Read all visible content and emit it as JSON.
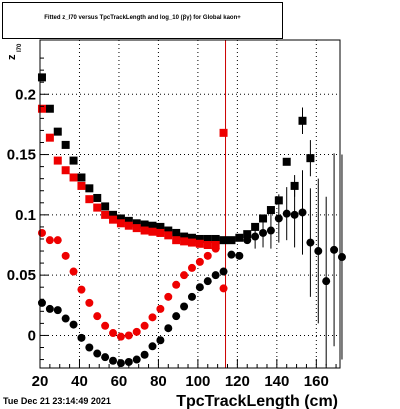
{
  "header": {
    "title": "Fitted  z_I70  versus TpcTrackLength and log_10 (βγ) for Global kaon+"
  },
  "footer": {
    "timestamp": "Tue Dec 21 23:14:49 2021"
  },
  "chart_data": {
    "type": "scatter",
    "title": "Fitted  z_I70  versus TpcTrackLength and log_10 (βγ) for Global kaon+",
    "xlabel": "TpcTrackLength (cm)",
    "ylabel": "z_I70",
    "xlim": [
      20,
      172
    ],
    "ylim": [
      -0.027,
      0.245
    ],
    "xticks": [
      20,
      40,
      60,
      80,
      100,
      120,
      140,
      160
    ],
    "yticks": [
      0,
      0.05,
      0.1,
      0.15,
      0.2
    ],
    "ytick_labels": [
      "0",
      "0.05",
      "0.1",
      "0.15",
      "0.2"
    ],
    "grid": true,
    "vertical_line": {
      "x": 114,
      "color": "#cc0000"
    },
    "series": [
      {
        "marker": "square",
        "color": "#000000",
        "points": [
          [
            21,
            0.214
          ],
          [
            25,
            0.188
          ],
          [
            29,
            0.169
          ],
          [
            33,
            0.158
          ],
          [
            37,
            0.145
          ],
          [
            41,
            0.131
          ],
          [
            45,
            0.122
          ],
          [
            49,
            0.114
          ],
          [
            53,
            0.107
          ],
          [
            57,
            0.1
          ],
          [
            61,
            0.097
          ],
          [
            65,
            0.095
          ],
          [
            69,
            0.093
          ],
          [
            73,
            0.092
          ],
          [
            77,
            0.091
          ],
          [
            81,
            0.09
          ],
          [
            85,
            0.087
          ],
          [
            89,
            0.085
          ],
          [
            93,
            0.082
          ],
          [
            97,
            0.081
          ],
          [
            101,
            0.08
          ],
          [
            105,
            0.08
          ],
          [
            109,
            0.08
          ],
          [
            113,
            0.079
          ],
          [
            117,
            0.079
          ],
          [
            121,
            0.081
          ],
          [
            125,
            0.084
          ],
          [
            129,
            0.09
          ],
          [
            133,
            0.097
          ],
          [
            137,
            0.104
          ],
          [
            141,
            0.112
          ],
          [
            145,
            0.144
          ],
          [
            149,
            0.124
          ],
          [
            153,
            0.178
          ],
          [
            157,
            0.147
          ]
        ],
        "errors": [
          [
            149,
            0.009
          ],
          [
            153,
            0.011
          ],
          [
            157,
            0.015
          ]
        ]
      },
      {
        "marker": "square",
        "color": "#ee0000",
        "points": [
          [
            21,
            0.188
          ],
          [
            25,
            0.164
          ],
          [
            29,
            0.145
          ],
          [
            33,
            0.137
          ],
          [
            37,
            0.131
          ],
          [
            41,
            0.124
          ],
          [
            45,
            0.113
          ],
          [
            49,
            0.106
          ],
          [
            53,
            0.1
          ],
          [
            57,
            0.096
          ],
          [
            61,
            0.093
          ],
          [
            65,
            0.091
          ],
          [
            69,
            0.089
          ],
          [
            73,
            0.087
          ],
          [
            77,
            0.086
          ],
          [
            81,
            0.085
          ],
          [
            85,
            0.083
          ],
          [
            89,
            0.079
          ],
          [
            93,
            0.078
          ],
          [
            97,
            0.077
          ],
          [
            101,
            0.076
          ],
          [
            105,
            0.075
          ],
          [
            109,
            0.075
          ],
          [
            113,
            0.168
          ]
        ]
      },
      {
        "marker": "circle",
        "color": "#ee0000",
        "points": [
          [
            21,
            0.085
          ],
          [
            25,
            0.079
          ],
          [
            29,
            0.079
          ],
          [
            33,
            0.066
          ],
          [
            37,
            0.053
          ],
          [
            41,
            0.038
          ],
          [
            45,
            0.027
          ],
          [
            49,
            0.016
          ],
          [
            53,
            0.008
          ],
          [
            57,
            0.002
          ],
          [
            61,
            -0.001
          ],
          [
            65,
            0.0
          ],
          [
            69,
            0.003
          ],
          [
            73,
            0.008
          ],
          [
            77,
            0.015
          ],
          [
            81,
            0.022
          ],
          [
            85,
            0.032
          ],
          [
            89,
            0.042
          ],
          [
            93,
            0.05
          ],
          [
            97,
            0.056
          ],
          [
            101,
            0.061
          ],
          [
            105,
            0.066
          ],
          [
            109,
            0.072
          ],
          [
            113,
            0.039
          ]
        ]
      },
      {
        "marker": "circle",
        "color": "#000000",
        "points": [
          [
            21,
            0.027
          ],
          [
            25,
            0.022
          ],
          [
            29,
            0.021
          ],
          [
            33,
            0.014
          ],
          [
            37,
            0.009
          ],
          [
            41,
            -0.002
          ],
          [
            45,
            -0.01
          ],
          [
            49,
            -0.015
          ],
          [
            53,
            -0.018
          ],
          [
            57,
            -0.021
          ],
          [
            61,
            -0.023
          ],
          [
            65,
            -0.022
          ],
          [
            69,
            -0.02
          ],
          [
            73,
            -0.016
          ],
          [
            77,
            -0.009
          ],
          [
            81,
            -0.004
          ],
          [
            85,
            0.006
          ],
          [
            89,
            0.016
          ],
          [
            93,
            0.024
          ],
          [
            97,
            0.032
          ],
          [
            101,
            0.04
          ],
          [
            105,
            0.045
          ],
          [
            109,
            0.05
          ],
          [
            113,
            0.053
          ],
          [
            117,
            0.067
          ],
          [
            121,
            0.066
          ],
          [
            125,
            0.079
          ],
          [
            129,
            0.082
          ],
          [
            133,
            0.085
          ],
          [
            137,
            0.087
          ],
          [
            141,
            0.097
          ],
          [
            145,
            0.101
          ],
          [
            149,
            0.1
          ],
          [
            153,
            0.102
          ],
          [
            157,
            0.077
          ],
          [
            161,
            0.07
          ],
          [
            165,
            0.045
          ],
          [
            169,
            0.071
          ],
          [
            173,
            0.065
          ]
        ],
        "errors": [
          [
            129,
            0.01
          ],
          [
            133,
            0.012
          ],
          [
            137,
            0.015
          ],
          [
            141,
            0.02
          ],
          [
            145,
            0.022
          ],
          [
            149,
            0.027
          ],
          [
            153,
            0.035
          ],
          [
            157,
            0.045
          ],
          [
            161,
            0.06
          ],
          [
            165,
            0.07
          ],
          [
            169,
            0.08
          ],
          [
            173,
            0.085
          ]
        ]
      }
    ]
  }
}
